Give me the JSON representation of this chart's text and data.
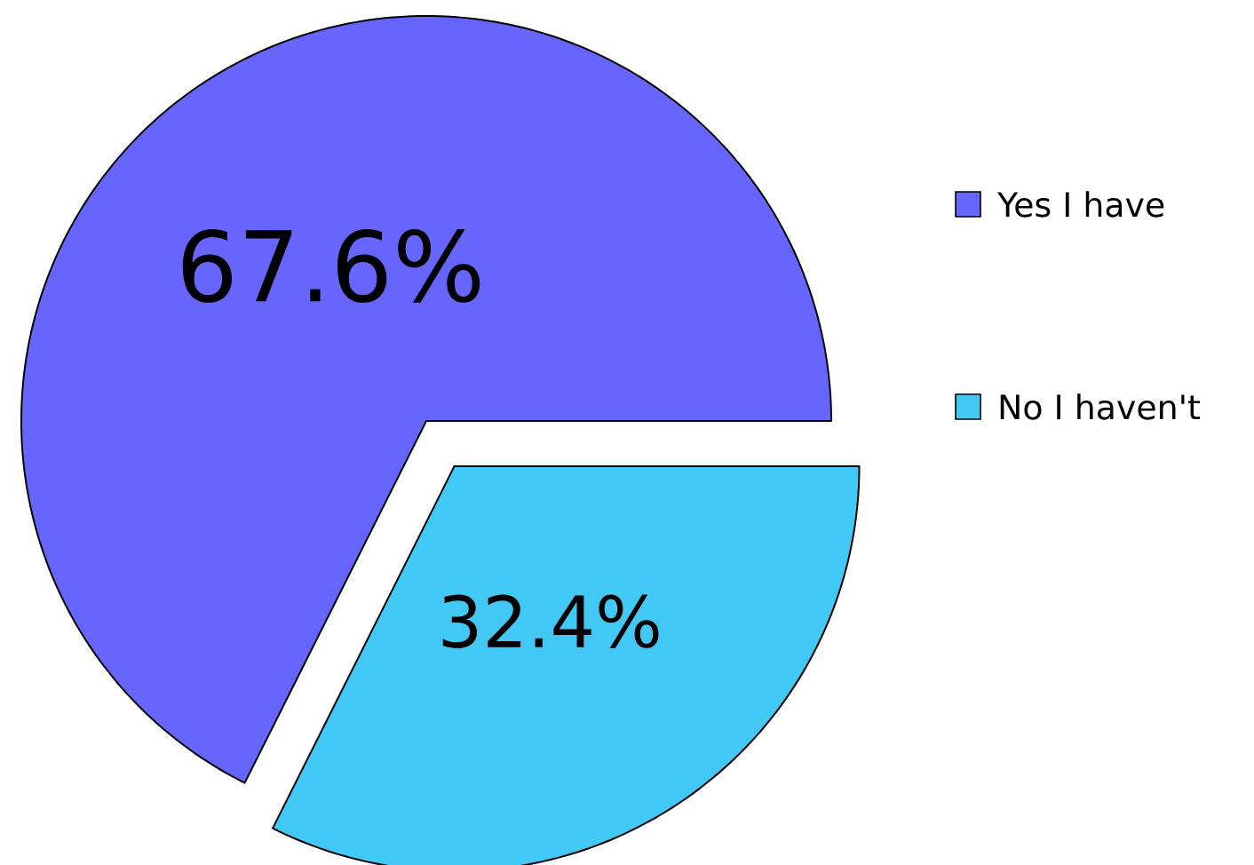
{
  "chart_data": {
    "type": "pie",
    "categories": [
      "Yes I have",
      "No I haven't"
    ],
    "values": [
      67.6,
      32.4
    ],
    "colors": [
      "#6666ff",
      "#42c8f4"
    ],
    "value_labels": [
      "67.6%",
      "32.4%"
    ],
    "legend": "right"
  }
}
